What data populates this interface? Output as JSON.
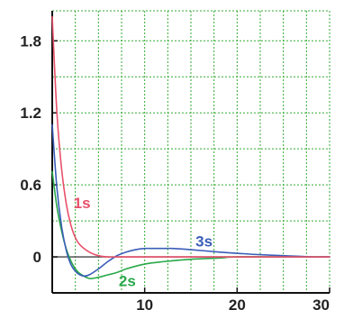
{
  "chart_data": {
    "type": "line",
    "title": "",
    "xlabel": "",
    "ylabel": "",
    "xlim": [
      0,
      30
    ],
    "ylim": [
      -0.3,
      2.05
    ],
    "x_ticks": [
      10,
      20,
      30
    ],
    "y_ticks": [
      0,
      0.6,
      1.2,
      1.8
    ],
    "x_tick_labels": [
      "10",
      "20",
      "30"
    ],
    "y_tick_labels": [
      "0",
      "0.6",
      "1.2",
      "1.8"
    ],
    "grid": "on (dotted, green)",
    "colors": {
      "grid": "#33aa33",
      "1s": "#e8506a",
      "2s": "#2aa84a",
      "3s": "#3a5db8",
      "axis": "#111111"
    },
    "series": [
      {
        "name": "1s",
        "x": [
          0,
          0.5,
          1,
          1.5,
          2,
          2.5,
          3,
          4,
          5,
          6,
          8,
          10,
          15,
          20,
          25,
          30
        ],
        "y": [
          2.0,
          1.21,
          0.74,
          0.45,
          0.27,
          0.16,
          0.1,
          0.04,
          0.01,
          0.0,
          0.0,
          0.0,
          0.0,
          0.0,
          0.0,
          0.0
        ]
      },
      {
        "name": "2s",
        "x": [
          0,
          0.5,
          1,
          1.5,
          2,
          2.5,
          3,
          4,
          5,
          6,
          7,
          8,
          10,
          12,
          15,
          18,
          20,
          25,
          30
        ],
        "y": [
          0.71,
          0.42,
          0.22,
          0.07,
          -0.03,
          -0.1,
          -0.14,
          -0.18,
          -0.17,
          -0.15,
          -0.13,
          -0.1,
          -0.06,
          -0.04,
          -0.02,
          -0.01,
          0.0,
          0.0,
          0.0
        ]
      },
      {
        "name": "3s",
        "x": [
          0,
          0.5,
          1,
          1.5,
          2,
          2.5,
          3,
          3.5,
          4,
          5,
          6,
          7,
          8,
          9,
          10,
          11,
          12,
          13,
          15,
          18,
          20,
          22,
          25,
          28,
          30
        ],
        "y": [
          1.1,
          0.58,
          0.26,
          0.06,
          -0.06,
          -0.12,
          -0.15,
          -0.16,
          -0.15,
          -0.1,
          -0.04,
          0.01,
          0.04,
          0.06,
          0.07,
          0.07,
          0.07,
          0.07,
          0.06,
          0.04,
          0.03,
          0.02,
          0.01,
          0.0,
          0.0
        ]
      }
    ],
    "annotations": [
      {
        "text": "1s",
        "series": "1s",
        "x": 2.3,
        "y": 0.45
      },
      {
        "text": "2s",
        "series": "2s",
        "x": 7.2,
        "y": -0.2
      },
      {
        "text": "3s",
        "series": "3s",
        "x": 15.5,
        "y": 0.13
      }
    ]
  }
}
